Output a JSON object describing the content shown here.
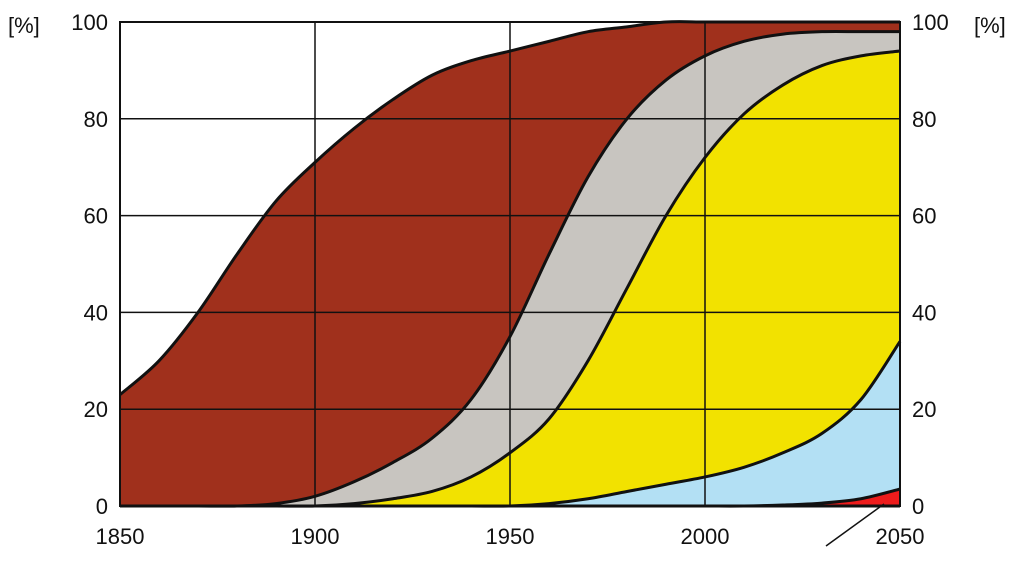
{
  "chart_data": {
    "type": "area",
    "stacked": true,
    "x_ticks": [
      1850,
      1900,
      1950,
      2000,
      2050
    ],
    "y_ticks": [
      0,
      20,
      40,
      60,
      80,
      100
    ],
    "xlim": [
      1850,
      2050
    ],
    "ylim": [
      0,
      100
    ],
    "y_unit_left": "[%]",
    "y_unit_right": "[%]",
    "grid": true,
    "boundary_x": [
      1850,
      1860,
      1870,
      1880,
      1890,
      1900,
      1910,
      1920,
      1930,
      1940,
      1950,
      1960,
      1970,
      1980,
      1990,
      2000,
      2010,
      2020,
      2030,
      2040,
      2050
    ],
    "boundaries": [
      {
        "color": "#a0301c",
        "values": [
          23,
          30,
          40,
          52,
          63,
          71,
          78,
          84,
          89,
          92,
          94,
          96,
          98,
          99,
          100,
          100,
          100,
          100,
          100,
          100,
          100
        ]
      },
      {
        "color": "#c8c5c0",
        "values": [
          0,
          0,
          0,
          0,
          0.5,
          2,
          5,
          9,
          14,
          22,
          35,
          52,
          68,
          80,
          88,
          93,
          96,
          97.5,
          98,
          98,
          98
        ]
      },
      {
        "color": "#f2e200",
        "values": [
          0,
          0,
          0,
          0,
          0,
          0,
          0.5,
          1.5,
          3,
          6,
          11,
          18,
          30,
          45,
          60,
          72,
          81,
          87,
          91,
          93,
          94
        ]
      },
      {
        "color": "#b3e0f4",
        "values": [
          0,
          0,
          0,
          0,
          0,
          0,
          0,
          0,
          0,
          0,
          0,
          0.5,
          1.5,
          3,
          4.5,
          6,
          8,
          11,
          15,
          22,
          34
        ]
      },
      {
        "color": "#ee1c1c",
        "values": [
          0,
          0,
          0,
          0,
          0,
          0,
          0,
          0,
          0,
          0,
          0,
          0,
          0,
          0,
          0,
          0,
          0,
          0.2,
          0.6,
          1.5,
          3.5
        ]
      },
      {
        "color": "#a5c33b",
        "values": [
          0,
          0,
          0,
          0,
          0,
          0,
          0,
          0,
          0,
          0,
          0,
          0,
          0,
          0,
          0,
          0,
          0,
          0,
          0,
          0,
          0
        ]
      }
    ]
  }
}
